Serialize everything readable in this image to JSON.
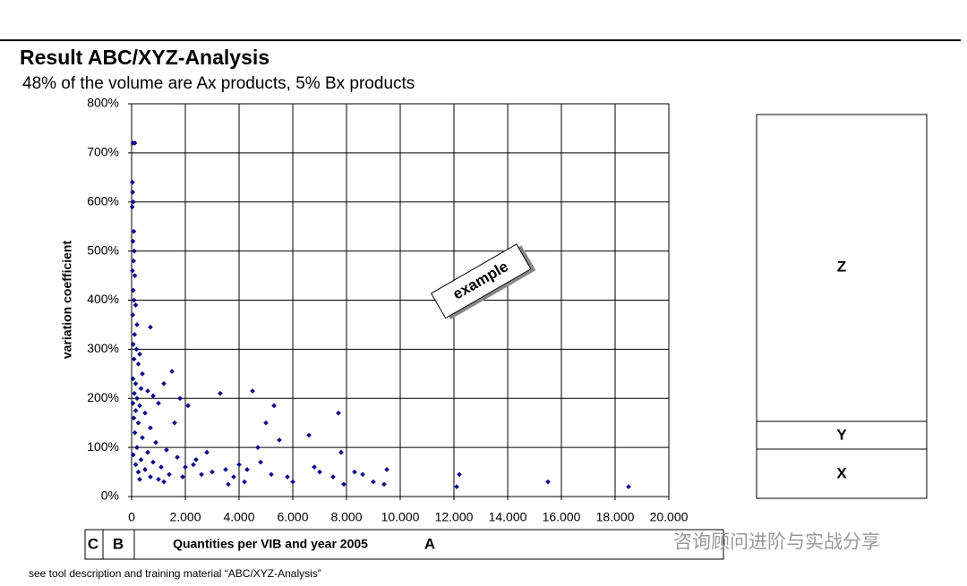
{
  "chart_data": {
    "type": "scatter",
    "title": "Result ABC/XYZ-Analysis",
    "subtitle": "48% of the volume are Ax products, 5% Bx products",
    "y_label": "variation coefficient",
    "annotation": "example",
    "color": "#0a0a8c",
    "grid": true,
    "xlim": [
      0,
      20000
    ],
    "ylim": [
      0,
      800
    ],
    "xticks": [
      0,
      {
        "value": 2000,
        "label": "2.000"
      },
      {
        "value": 4000,
        "label": "4.000"
      },
      {
        "value": 6000,
        "label": "6.000"
      },
      {
        "value": 8000,
        "label": "8.000"
      },
      {
        "value": 10000,
        "label": "10.000"
      },
      {
        "value": 12000,
        "label": "12.000"
      },
      {
        "value": 14000,
        "label": "14.000"
      },
      {
        "value": 16000,
        "label": "16.000"
      },
      {
        "value": 18000,
        "label": "18.000"
      },
      {
        "value": 20000,
        "label": "20.000"
      }
    ],
    "yticks": [
      {
        "value": 0,
        "label": "0%"
      },
      {
        "value": 100,
        "label": "100%"
      },
      {
        "value": 200,
        "label": "200%"
      },
      {
        "value": 300,
        "label": "300%"
      },
      {
        "value": 400,
        "label": "400%"
      },
      {
        "value": 500,
        "label": "500%"
      },
      {
        "value": 600,
        "label": "600%"
      },
      {
        "value": 700,
        "label": "700%"
      },
      {
        "value": 800,
        "label": "800%"
      }
    ],
    "x": [
      50,
      120,
      30,
      40,
      60,
      20,
      80,
      50,
      100,
      70,
      30,
      120,
      60,
      90,
      150,
      40,
      200,
      700,
      110,
      60,
      180,
      300,
      90,
      250,
      400,
      50,
      150,
      350,
      100,
      600,
      200,
      800,
      50,
      300,
      1000,
      150,
      500,
      80,
      250,
      1500,
      1200,
      1800,
      700,
      120,
      400,
      900,
      200,
      1300,
      600,
      60,
      350,
      1700,
      800,
      150,
      1100,
      500,
      2000,
      250,
      1400,
      700,
      1900,
      1000,
      300,
      2300,
      2600,
      3000,
      3300,
      3500,
      3800,
      4000,
      4200,
      4500,
      4700,
      4800,
      5000,
      5200,
      5300,
      5500,
      5800,
      6000,
      6600,
      6800,
      7000,
      7500,
      7700,
      7800,
      7900,
      8300,
      8600,
      9000,
      9500,
      9400,
      12100,
      12200,
      15500,
      18500,
      2100,
      1600,
      2400,
      2800,
      3600,
      1200,
      4300
    ],
    "values": [
      720,
      720,
      640,
      620,
      600,
      590,
      540,
      520,
      500,
      480,
      460,
      450,
      420,
      400,
      390,
      370,
      350,
      345,
      330,
      310,
      300,
      290,
      280,
      270,
      250,
      240,
      230,
      220,
      210,
      215,
      200,
      205,
      190,
      185,
      190,
      175,
      170,
      160,
      150,
      255,
      230,
      200,
      140,
      130,
      120,
      110,
      100,
      95,
      90,
      85,
      75,
      80,
      70,
      65,
      60,
      55,
      60,
      50,
      45,
      40,
      40,
      35,
      35,
      65,
      45,
      50,
      210,
      55,
      40,
      65,
      30,
      215,
      100,
      70,
      150,
      45,
      185,
      115,
      40,
      30,
      125,
      60,
      50,
      40,
      170,
      90,
      25,
      50,
      45,
      30,
      55,
      25,
      20,
      45,
      30,
      20,
      185,
      150,
      75,
      90,
      25,
      30,
      55
    ],
    "xyz_labels": [
      "Z",
      "Y",
      "X"
    ],
    "abc_labels": [
      "C",
      "B",
      "A"
    ],
    "x_label": "Quantities per VIB and year 2005",
    "footnote": "see tool description and training material “ABC/XYZ-Analysis”",
    "watermark": "咨询顾问进阶与实战分享"
  }
}
